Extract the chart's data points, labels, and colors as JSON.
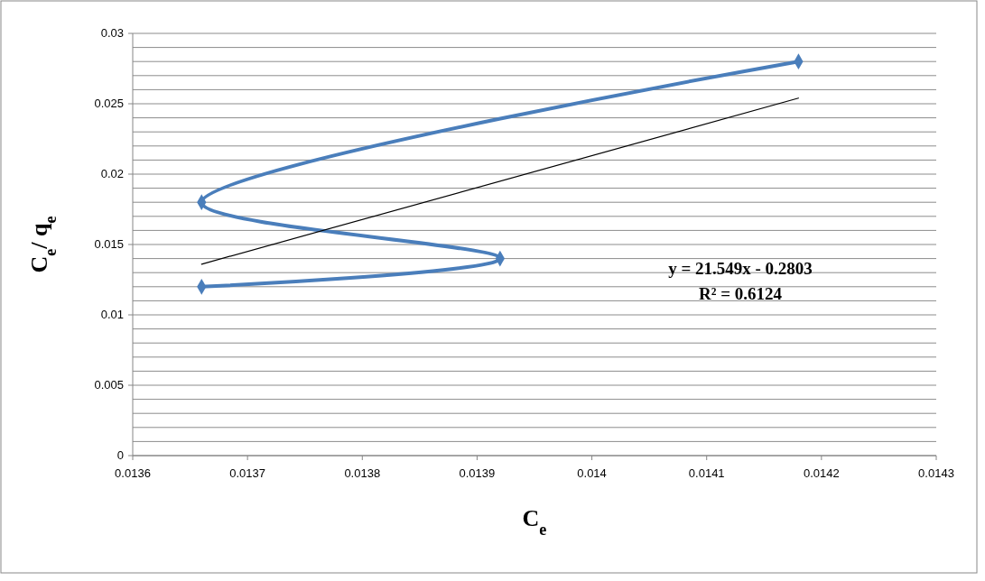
{
  "chart_data": {
    "type": "line",
    "xlabel": "C$_{e}$",
    "ylabel": "C$_{e}$/ q$_{e}$",
    "xlim": [
      0.0136,
      0.0143
    ],
    "xticks": [
      0.0136,
      0.0137,
      0.0138,
      0.0139,
      0.014,
      0.0141,
      0.0142,
      0.0143
    ],
    "ylim": [
      0,
      0.03
    ],
    "yticks": [
      0,
      {
        "value": 0.001,
        "label": null
      },
      {
        "value": 0.002,
        "label": null
      },
      {
        "value": 0.003,
        "label": null
      },
      {
        "value": 0.004,
        "label": null
      },
      0.005,
      {
        "value": 0.006,
        "label": null
      },
      {
        "value": 0.007,
        "label": null
      },
      {
        "value": 0.008,
        "label": null
      },
      {
        "value": 0.009,
        "label": null
      },
      0.01,
      {
        "value": 0.011,
        "label": null
      },
      {
        "value": 0.012,
        "label": null
      },
      {
        "value": 0.013,
        "label": null
      },
      {
        "value": 0.014,
        "label": null
      },
      0.015,
      {
        "value": 0.016,
        "label": null
      },
      {
        "value": 0.017,
        "label": null
      },
      {
        "value": 0.018,
        "label": null
      },
      {
        "value": 0.019,
        "label": null
      },
      0.02,
      {
        "value": 0.021,
        "label": null
      },
      {
        "value": 0.022,
        "label": null
      },
      {
        "value": 0.023,
        "label": null
      },
      {
        "value": 0.024,
        "label": null
      },
      0.025,
      {
        "value": 0.026,
        "label": null
      },
      {
        "value": 0.027,
        "label": null
      },
      {
        "value": 0.028,
        "label": null
      },
      {
        "value": 0.029,
        "label": null
      },
      0.03
    ],
    "grid": "y",
    "series": [
      {
        "color": "#4a7ebb",
        "marker": "diamond",
        "x": [
          0.01366,
          0.01392,
          0.01366,
          0.01418
        ],
        "values": [
          0.012,
          0.014,
          0.018,
          0.028
        ]
      },
      {
        "color": "#000000",
        "marker": "none",
        "x": [
          0.01366,
          0.01418
        ],
        "values": [
          0.0136,
          0.0254
        ]
      }
    ],
    "annotations": [
      "y = 21.549x - 0.2803",
      "R² = 0.6124"
    ]
  }
}
